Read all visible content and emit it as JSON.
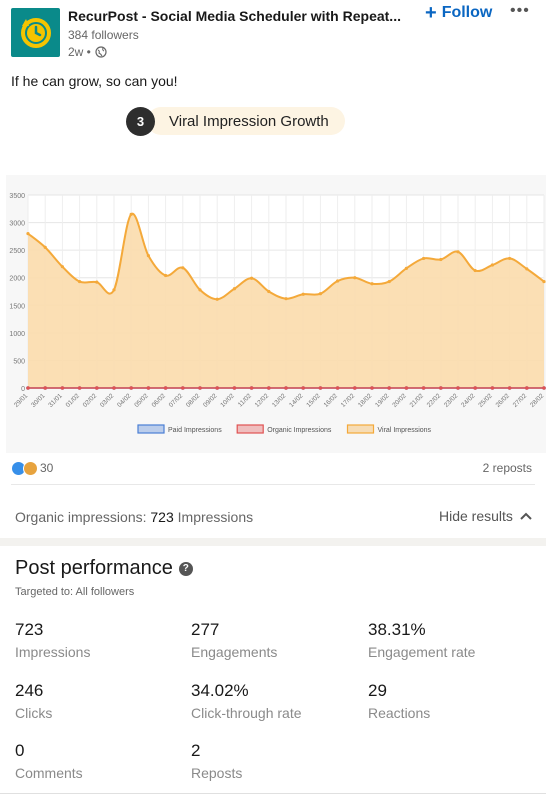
{
  "post": {
    "author": "RecurPost - Social Media Scheduler with Repeat...",
    "followers": "384 followers",
    "age": "2w •",
    "follow_label": "Follow",
    "more_label": "•••",
    "text": "If he can grow, so can you!"
  },
  "badge": {
    "number": "3",
    "label": "Viral Impression Growth"
  },
  "social": {
    "reactions": "30",
    "reposts": "2 reposts"
  },
  "organic": {
    "label": "Organic impressions:",
    "value": "723",
    "suffix": "Impressions",
    "hide_label": "Hide results"
  },
  "performance": {
    "title": "Post performance",
    "targeted": "Targeted to: All followers",
    "metrics": [
      {
        "value": "723",
        "label": "Impressions"
      },
      {
        "value": "277",
        "label": "Engagements"
      },
      {
        "value": "38.31%",
        "label": "Engagement rate"
      },
      {
        "value": "246",
        "label": "Clicks"
      },
      {
        "value": "34.02%",
        "label": "Click-through rate"
      },
      {
        "value": "29",
        "label": "Reactions"
      },
      {
        "value": "0",
        "label": "Comments"
      },
      {
        "value": "2",
        "label": "Reposts"
      }
    ]
  },
  "colors": {
    "viral": "#f4a93a",
    "viral_fill": "#fbdcac",
    "paid": "#4a7fd4",
    "organic": "#e05252",
    "link": "#0a66c2"
  },
  "chart_data": {
    "type": "area",
    "ylim": [
      0,
      3500
    ],
    "yticks": [
      "0",
      "500",
      "1000",
      "1500",
      "2000",
      "2500",
      "3000",
      "3500"
    ],
    "categories": [
      "29/01",
      "30/01",
      "31/01",
      "01/02",
      "02/02",
      "03/02",
      "04/02",
      "05/02",
      "06/02",
      "07/02",
      "08/02",
      "09/02",
      "10/02",
      "11/02",
      "12/02",
      "13/02",
      "14/02",
      "15/02",
      "16/02",
      "17/02",
      "18/02",
      "19/02",
      "20/02",
      "21/02",
      "22/02",
      "23/02",
      "24/02",
      "25/02",
      "26/02",
      "27/02",
      "28/02"
    ],
    "series": [
      {
        "name": "Paid Impressions",
        "color": "#4a7fd4",
        "values": [
          0,
          0,
          0,
          0,
          0,
          0,
          0,
          0,
          0,
          0,
          0,
          0,
          0,
          0,
          0,
          0,
          0,
          0,
          0,
          0,
          0,
          0,
          0,
          0,
          0,
          0,
          0,
          0,
          0,
          0,
          0
        ]
      },
      {
        "name": "Organic Impressions",
        "color": "#e05252",
        "values": [
          0,
          0,
          0,
          0,
          0,
          0,
          0,
          0,
          0,
          0,
          0,
          0,
          0,
          0,
          0,
          0,
          0,
          0,
          0,
          0,
          0,
          0,
          0,
          0,
          0,
          0,
          0,
          0,
          0,
          0,
          0
        ]
      },
      {
        "name": "Viral Impressions",
        "color": "#f4a93a",
        "values": [
          2800,
          2550,
          2200,
          1930,
          1920,
          1780,
          3150,
          2400,
          2040,
          2180,
          1780,
          1610,
          1800,
          1990,
          1750,
          1620,
          1700,
          1710,
          1940,
          2000,
          1890,
          1930,
          2170,
          2350,
          2330,
          2470,
          2130,
          2230,
          2350,
          2160,
          1930
        ]
      }
    ],
    "legend": "bottom",
    "grid": true
  }
}
